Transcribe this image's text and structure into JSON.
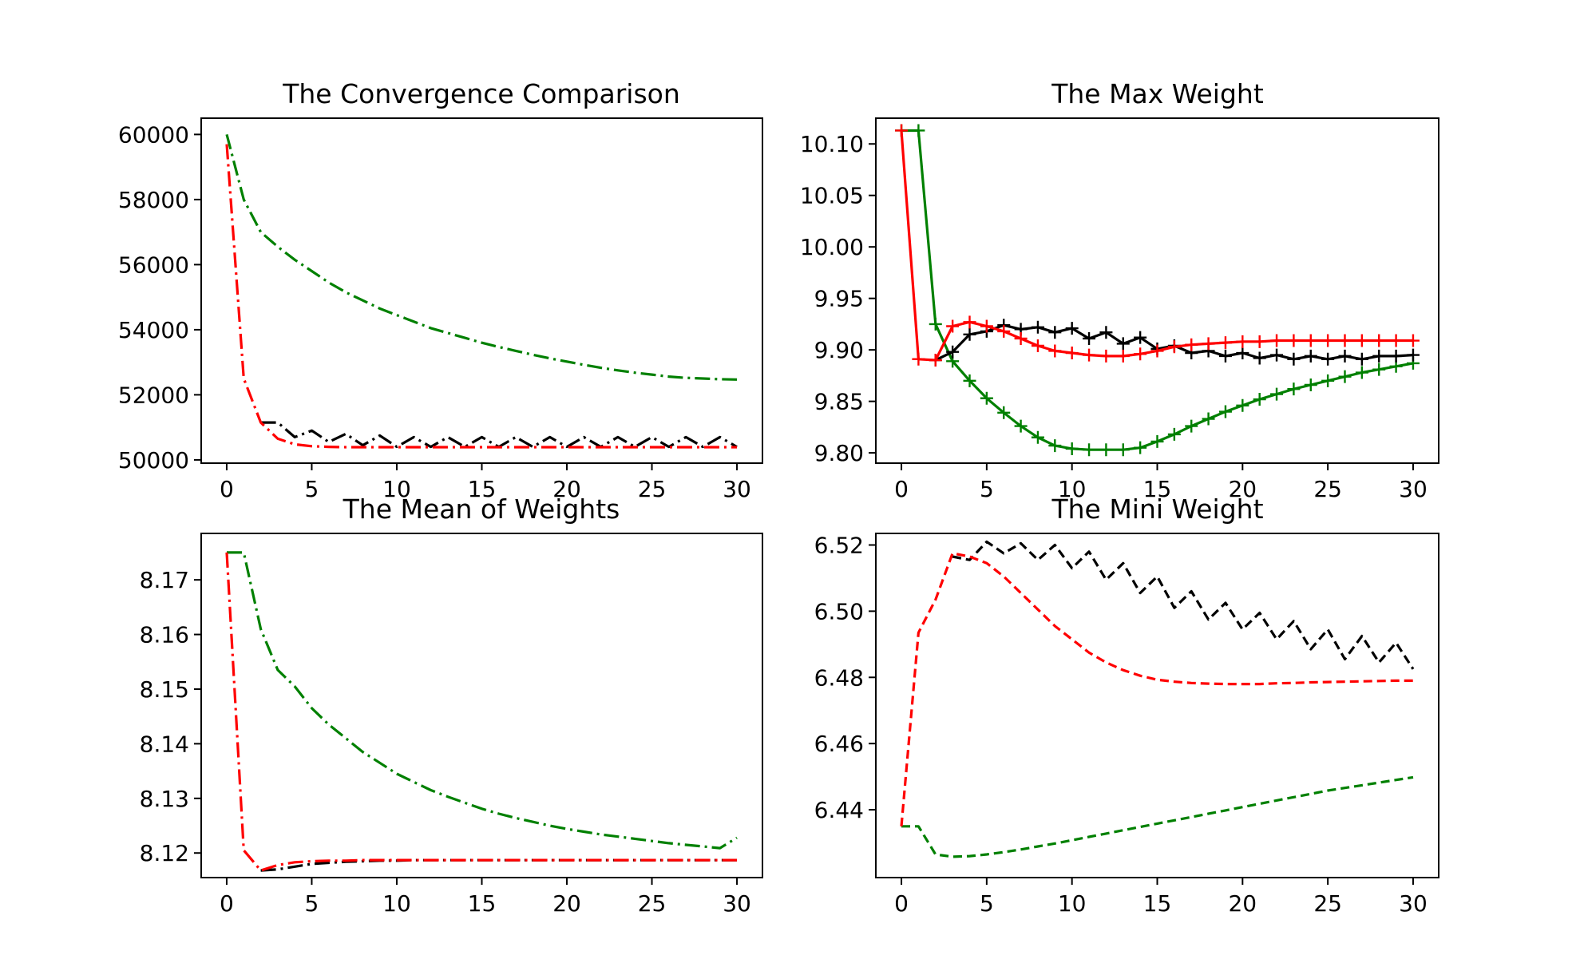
{
  "chart_data": [
    {
      "type": "line",
      "title": "The Convergence Comparison",
      "xlabel": "",
      "ylabel": "",
      "xlim": [
        -1.5,
        31.5
      ],
      "ylim": [
        49900,
        60500
      ],
      "xticks": [
        0,
        5,
        10,
        15,
        20,
        25,
        30
      ],
      "yticks": [
        50000,
        52000,
        54000,
        56000,
        58000,
        60000
      ],
      "ytick_labels": [
        "50000",
        "52000",
        "54000",
        "56000",
        "58000",
        "60000"
      ],
      "grid": false,
      "line_style": "dashdot",
      "markers": false,
      "series": [
        {
          "color": "#008000",
          "x": [
            0,
            1,
            2,
            3,
            4,
            5,
            6,
            7,
            8,
            9,
            10,
            11,
            12,
            13,
            14,
            15,
            16,
            17,
            18,
            19,
            20,
            21,
            22,
            23,
            24,
            25,
            26,
            27,
            28,
            29,
            30
          ],
          "values": [
            60000,
            58000,
            57000,
            56550,
            56150,
            55800,
            55450,
            55150,
            54900,
            54650,
            54450,
            54250,
            54050,
            53900,
            53750,
            53600,
            53470,
            53350,
            53230,
            53120,
            53020,
            52920,
            52830,
            52750,
            52680,
            52620,
            52560,
            52520,
            52500,
            52480,
            52470
          ]
        },
        {
          "color": "#000000",
          "x": [
            2,
            3,
            4,
            5,
            6,
            7,
            8,
            9,
            10,
            11,
            12,
            13,
            14,
            15,
            16,
            17,
            18,
            19,
            20,
            21,
            22,
            23,
            24,
            25,
            26,
            27,
            28,
            29,
            30
          ],
          "values": [
            51150,
            51150,
            50700,
            50900,
            50550,
            50800,
            50450,
            50750,
            50400,
            50700,
            50400,
            50700,
            50400,
            50700,
            50400,
            50700,
            50400,
            50700,
            50400,
            50700,
            50400,
            50700,
            50400,
            50700,
            50400,
            50700,
            50400,
            50700,
            50400
          ]
        },
        {
          "color": "#ff0000",
          "x": [
            0,
            1,
            2,
            3,
            4,
            5,
            6,
            7,
            8,
            9,
            10,
            11,
            12,
            13,
            14,
            15,
            16,
            17,
            18,
            19,
            20,
            21,
            22,
            23,
            24,
            25,
            26,
            27,
            28,
            29,
            30
          ],
          "values": [
            59700,
            52500,
            51150,
            50650,
            50480,
            50420,
            50400,
            50390,
            50390,
            50390,
            50390,
            50390,
            50390,
            50390,
            50390,
            50390,
            50390,
            50390,
            50390,
            50390,
            50390,
            50390,
            50390,
            50390,
            50390,
            50390,
            50390,
            50390,
            50390,
            50390,
            50390
          ]
        }
      ]
    },
    {
      "type": "line",
      "title": "The Max Weight",
      "xlabel": "",
      "ylabel": "",
      "xlim": [
        -1.5,
        31.5
      ],
      "ylim": [
        9.79,
        10.125
      ],
      "xticks": [
        0,
        5,
        10,
        15,
        20,
        25,
        30
      ],
      "yticks": [
        9.8,
        9.85,
        9.9,
        9.95,
        10.0,
        10.05,
        10.1
      ],
      "ytick_labels": [
        "9.80",
        "9.85",
        "9.90",
        "9.95",
        "10.00",
        "10.05",
        "10.10"
      ],
      "grid": false,
      "line_style": "solid",
      "markers": true,
      "series": [
        {
          "color": "#008000",
          "x": [
            0,
            1,
            2,
            3,
            4,
            5,
            6,
            7,
            8,
            9,
            10,
            11,
            12,
            13,
            14,
            15,
            16,
            17,
            18,
            19,
            20,
            21,
            22,
            23,
            24,
            25,
            26,
            27,
            28,
            29,
            30
          ],
          "values": [
            10.113,
            10.113,
            9.925,
            9.889,
            9.87,
            9.853,
            9.839,
            9.826,
            9.815,
            9.807,
            9.804,
            9.803,
            9.803,
            9.803,
            9.805,
            9.811,
            9.818,
            9.826,
            9.833,
            9.84,
            9.846,
            9.852,
            9.857,
            9.862,
            9.866,
            9.87,
            9.874,
            9.878,
            9.881,
            9.884,
            9.887
          ]
        },
        {
          "color": "#000000",
          "x": [
            2,
            3,
            4,
            5,
            6,
            7,
            8,
            9,
            10,
            11,
            12,
            13,
            14,
            15,
            16,
            17,
            18,
            19,
            20,
            21,
            22,
            23,
            24,
            25,
            26,
            27,
            28,
            29,
            30
          ],
          "values": [
            9.89,
            9.898,
            9.915,
            9.918,
            9.924,
            9.92,
            9.922,
            9.917,
            9.921,
            9.911,
            9.917,
            9.906,
            9.912,
            9.901,
            9.904,
            9.897,
            9.899,
            9.894,
            9.897,
            9.892,
            9.895,
            9.891,
            9.894,
            9.891,
            9.894,
            9.891,
            9.894,
            9.894,
            9.895
          ]
        },
        {
          "color": "#ff0000",
          "x": [
            0,
            1,
            2,
            3,
            4,
            5,
            6,
            7,
            8,
            9,
            10,
            11,
            12,
            13,
            14,
            15,
            16,
            17,
            18,
            19,
            20,
            21,
            22,
            23,
            24,
            25,
            26,
            27,
            28,
            29,
            30
          ],
          "values": [
            10.113,
            9.891,
            9.89,
            9.923,
            9.927,
            9.923,
            9.918,
            9.911,
            9.904,
            9.899,
            9.897,
            9.895,
            9.894,
            9.894,
            9.896,
            9.899,
            9.903,
            9.905,
            9.906,
            9.907,
            9.908,
            9.908,
            9.909,
            9.909,
            9.909,
            9.909,
            9.909,
            9.909,
            9.909,
            9.909,
            9.909
          ]
        }
      ]
    },
    {
      "type": "line",
      "title": "The Mean of Weights",
      "xlabel": "",
      "ylabel": "",
      "xlim": [
        -1.5,
        31.5
      ],
      "ylim": [
        8.1155,
        8.1785
      ],
      "xticks": [
        0,
        5,
        10,
        15,
        20,
        25,
        30
      ],
      "yticks": [
        8.12,
        8.13,
        8.14,
        8.15,
        8.16,
        8.17
      ],
      "ytick_labels": [
        "8.12",
        "8.13",
        "8.14",
        "8.15",
        "8.16",
        "8.17"
      ],
      "grid": false,
      "line_style": "dashdot",
      "markers": false,
      "series": [
        {
          "color": "#008000",
          "x": [
            0,
            1,
            2,
            3,
            4,
            5,
            6,
            7,
            8,
            9,
            10,
            11,
            12,
            13,
            14,
            15,
            16,
            17,
            18,
            19,
            20,
            21,
            22,
            23,
            24,
            25,
            26,
            27,
            28,
            29,
            30
          ],
          "values": [
            8.175,
            8.175,
            8.161,
            8.1535,
            8.1505,
            8.1465,
            8.1435,
            8.141,
            8.1385,
            8.1365,
            8.1345,
            8.133,
            8.1315,
            8.1303,
            8.1292,
            8.1281,
            8.1272,
            8.1264,
            8.1257,
            8.125,
            8.1244,
            8.1239,
            8.1234,
            8.123,
            8.1226,
            8.1222,
            8.1218,
            8.1215,
            8.1212,
            8.1209,
            8.1228
          ]
        },
        {
          "color": "#000000",
          "x": [
            2,
            3,
            4,
            5,
            6,
            7,
            8,
            9,
            10,
            11,
            12,
            13,
            14,
            15,
            16,
            17,
            18,
            19,
            20,
            21,
            22,
            23,
            24,
            25,
            26,
            27,
            28,
            29,
            30
          ],
          "values": [
            8.1168,
            8.117,
            8.1175,
            8.118,
            8.1182,
            8.1184,
            8.1185,
            8.1186,
            8.1186,
            8.1187,
            8.1187,
            8.1187,
            8.1187,
            8.1187,
            8.1187,
            8.1187,
            8.1187,
            8.1187,
            8.1187,
            8.1187,
            8.1187,
            8.1187,
            8.1187,
            8.1187,
            8.1187,
            8.1187,
            8.1187,
            8.1187,
            8.1187
          ]
        },
        {
          "color": "#ff0000",
          "x": [
            0,
            1,
            2,
            3,
            4,
            5,
            6,
            7,
            8,
            9,
            10,
            11,
            12,
            13,
            14,
            15,
            16,
            17,
            18,
            19,
            20,
            21,
            22,
            23,
            24,
            25,
            26,
            27,
            28,
            29,
            30
          ],
          "values": [
            8.175,
            8.1205,
            8.1168,
            8.1178,
            8.1183,
            8.1185,
            8.1186,
            8.1186,
            8.1187,
            8.1187,
            8.1187,
            8.1187,
            8.1187,
            8.1187,
            8.1187,
            8.1187,
            8.1187,
            8.1187,
            8.1187,
            8.1187,
            8.1187,
            8.1187,
            8.1187,
            8.1187,
            8.1187,
            8.1187,
            8.1187,
            8.1187,
            8.1187,
            8.1187,
            8.1187
          ]
        }
      ]
    },
    {
      "type": "line",
      "title": "The Mini Weight",
      "xlabel": "",
      "ylabel": "",
      "xlim": [
        -1.5,
        31.5
      ],
      "ylim": [
        6.4195,
        6.5235
      ],
      "xticks": [
        0,
        5,
        10,
        15,
        20,
        25,
        30
      ],
      "yticks": [
        6.44,
        6.46,
        6.48,
        6.5,
        6.52
      ],
      "ytick_labels": [
        "6.44",
        "6.46",
        "6.48",
        "6.50",
        "6.52"
      ],
      "grid": false,
      "line_style": "dashed",
      "markers": false,
      "series": [
        {
          "color": "#008000",
          "x": [
            0,
            1,
            2,
            3,
            4,
            5,
            6,
            7,
            8,
            9,
            10,
            11,
            12,
            13,
            14,
            15,
            16,
            17,
            18,
            19,
            20,
            21,
            22,
            23,
            24,
            25,
            26,
            27,
            28,
            29,
            30
          ],
          "values": [
            6.435,
            6.435,
            6.4265,
            6.4258,
            6.426,
            6.4265,
            6.4272,
            6.428,
            6.4289,
            6.4298,
            6.4308,
            6.4318,
            6.4328,
            6.4338,
            6.4348,
            6.4358,
            6.4368,
            6.4378,
            6.4388,
            6.4398,
            6.4408,
            6.4418,
            6.4428,
            6.4438,
            6.4448,
            6.4458,
            6.4466,
            6.4474,
            6.4482,
            6.449,
            6.4498
          ]
        },
        {
          "color": "#000000",
          "x": [
            3,
            4,
            5,
            6,
            7,
            8,
            9,
            10,
            11,
            12,
            13,
            14,
            15,
            16,
            17,
            18,
            19,
            20,
            21,
            22,
            23,
            24,
            25,
            26,
            27,
            28,
            29,
            30
          ],
          "values": [
            6.5165,
            6.5155,
            6.521,
            6.5175,
            6.5205,
            6.5155,
            6.52,
            6.513,
            6.518,
            6.5095,
            6.5145,
            6.5055,
            6.5105,
            6.501,
            6.506,
            6.4975,
            6.5025,
            6.4945,
            6.4995,
            6.4915,
            6.497,
            6.4885,
            6.4945,
            6.4855,
            6.4925,
            6.4845,
            6.4905,
            6.4825
          ]
        },
        {
          "color": "#ff0000",
          "x": [
            0,
            1,
            2,
            3,
            4,
            5,
            6,
            7,
            8,
            9,
            10,
            11,
            12,
            13,
            14,
            15,
            16,
            17,
            18,
            19,
            20,
            21,
            22,
            23,
            24,
            25,
            26,
            27,
            28,
            29,
            30
          ],
          "values": [
            6.435,
            6.4935,
            6.5035,
            6.5175,
            6.5165,
            6.5145,
            6.5105,
            6.5055,
            6.5005,
            6.4955,
            6.4915,
            6.4875,
            6.4845,
            6.4822,
            6.4805,
            6.4793,
            6.4787,
            6.4783,
            6.4781,
            6.478,
            6.478,
            6.478,
            6.4782,
            6.4783,
            6.4785,
            6.4786,
            6.4787,
            6.4788,
            6.4789,
            6.479,
            6.479
          ]
        }
      ]
    }
  ]
}
